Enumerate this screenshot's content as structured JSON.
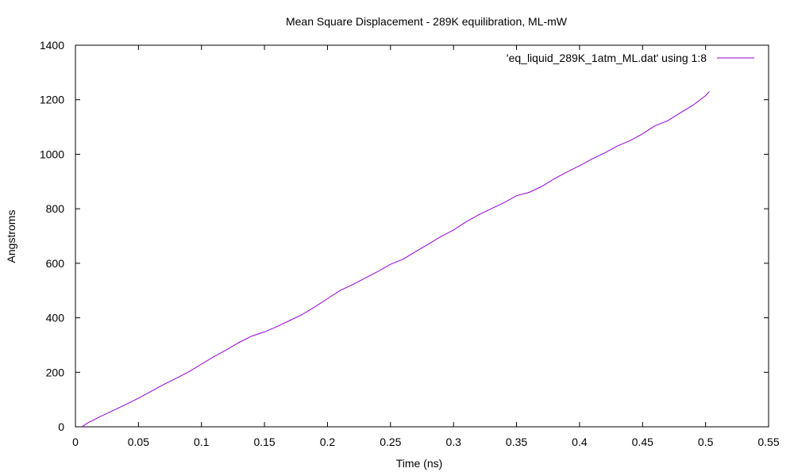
{
  "chart_data": {
    "type": "line",
    "title": "Mean Square Displacement - 289K equilibration, ML-mW",
    "xlabel": "Time (ns)",
    "ylabel": "Angstroms",
    "xlim": [
      0,
      0.55
    ],
    "ylim": [
      0,
      1400
    ],
    "xticks": [
      0,
      0.05,
      0.1,
      0.15,
      0.2,
      0.25,
      0.3,
      0.35,
      0.4,
      0.45,
      0.5,
      0.55
    ],
    "xtick_labels": [
      "0",
      "0.05",
      "0.1",
      "0.15",
      "0.2",
      "0.25",
      "0.3",
      "0.35",
      "0.4",
      "0.45",
      "0.5",
      "0.55"
    ],
    "yticks": [
      0,
      200,
      400,
      600,
      800,
      1000,
      1200,
      1400
    ],
    "ytick_labels": [
      "0",
      "200",
      "400",
      "600",
      "800",
      "1000",
      "1200",
      "1400"
    ],
    "grid": false,
    "legend_position": "top-right",
    "series": [
      {
        "name": "'eq_liquid_289K_1atm_ML.dat' using 1:8",
        "color": "#9400d3",
        "x": [
          0.005,
          0.01,
          0.02,
          0.03,
          0.04,
          0.05,
          0.06,
          0.07,
          0.08,
          0.09,
          0.1,
          0.11,
          0.12,
          0.13,
          0.14,
          0.15,
          0.16,
          0.17,
          0.18,
          0.19,
          0.2,
          0.21,
          0.22,
          0.23,
          0.24,
          0.25,
          0.26,
          0.27,
          0.28,
          0.29,
          0.3,
          0.31,
          0.32,
          0.33,
          0.34,
          0.35,
          0.36,
          0.37,
          0.38,
          0.39,
          0.4,
          0.41,
          0.42,
          0.43,
          0.44,
          0.45,
          0.46,
          0.47,
          0.48,
          0.49,
          0.5,
          0.503
        ],
        "y": [
          0,
          15,
          38,
          60,
          82,
          105,
          130,
          155,
          178,
          202,
          230,
          258,
          283,
          310,
          333,
          348,
          368,
          390,
          412,
          440,
          470,
          500,
          522,
          546,
          570,
          596,
          615,
          643,
          670,
          698,
          722,
          752,
          778,
          800,
          822,
          848,
          860,
          882,
          910,
          935,
          958,
          983,
          1005,
          1030,
          1050,
          1075,
          1105,
          1123,
          1152,
          1180,
          1215,
          1230
        ]
      }
    ]
  }
}
